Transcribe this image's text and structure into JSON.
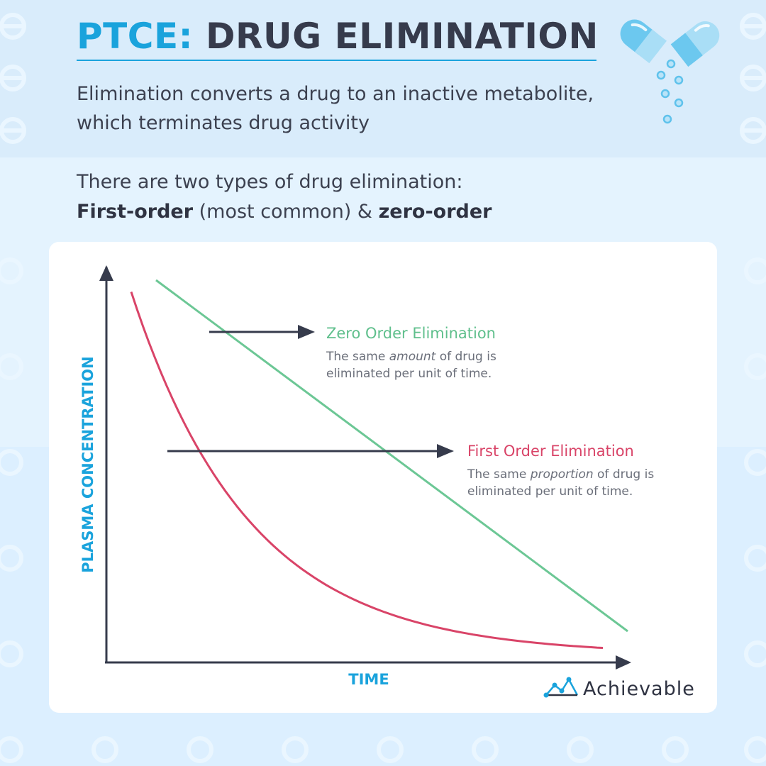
{
  "header": {
    "title_accent": "PTCE:",
    "title_rest": "DRUG ELIMINATION",
    "subtitle_line1": "Elimination converts a drug to an inactive metabolite,",
    "subtitle_line2": "which terminates drug activity"
  },
  "intro": {
    "line1": "There are two types of drug elimination:",
    "first_order": "First-order",
    "most_common": " (most common) & ",
    "zero_order": "zero-order"
  },
  "brand": {
    "name": "Achievable"
  },
  "colors": {
    "accent": "#1aa3dc",
    "dark": "#363b4c",
    "zero": "#6cc795",
    "first": "#d94468",
    "axis": "#363b4c"
  },
  "chart_data": {
    "type": "line",
    "xlabel": "TIME",
    "ylabel": "PLASMA CONCENTRATION",
    "xlim": [
      0,
      10
    ],
    "ylim": [
      0,
      10
    ],
    "series": [
      {
        "name": "Zero Order Elimination",
        "kind": "zero-order",
        "x": [
          1.0,
          10.5
        ],
        "y": [
          9.8,
          0.8
        ],
        "annotation": {
          "heading": "Zero Order Elimination",
          "text_before": "The same ",
          "emphasis": "amount",
          "text_after": " of drug is",
          "text_line2": "eliminated per unit of time."
        }
      },
      {
        "name": "First Order Elimination",
        "kind": "first-order",
        "x_start": 0.5,
        "x_end": 10.0,
        "y_start": 9.5,
        "asymptote": 0.2,
        "decay": 0.42,
        "annotation": {
          "heading": "First Order Elimination",
          "text_before": "The same ",
          "emphasis": "proportion",
          "text_after": " of drug is",
          "text_line2": "eliminated per unit of time."
        }
      }
    ]
  }
}
